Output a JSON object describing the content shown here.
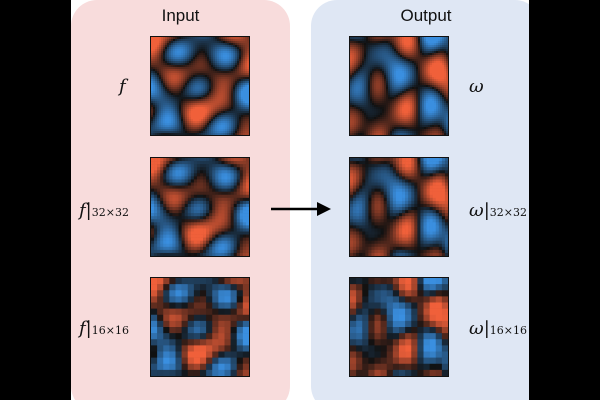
{
  "panels": {
    "input": {
      "title": "Input",
      "color": "#f8dcdc"
    },
    "output": {
      "title": "Output",
      "color": "#dfe7f4"
    }
  },
  "rows": [
    {
      "input_symbol": "f",
      "output_symbol": "ω",
      "subscript": "",
      "resolution": 0
    },
    {
      "input_symbol": "f",
      "output_symbol": "ω",
      "subscript": "32×32",
      "resolution": 32
    },
    {
      "input_symbol": "f",
      "output_symbol": "ω",
      "subscript": "16×16",
      "resolution": 16
    }
  ],
  "colormap": {
    "negative": "#3a8fe0",
    "zero": "#101010",
    "positive": "#f0603a"
  },
  "arrow_icon": "right-arrow-icon"
}
